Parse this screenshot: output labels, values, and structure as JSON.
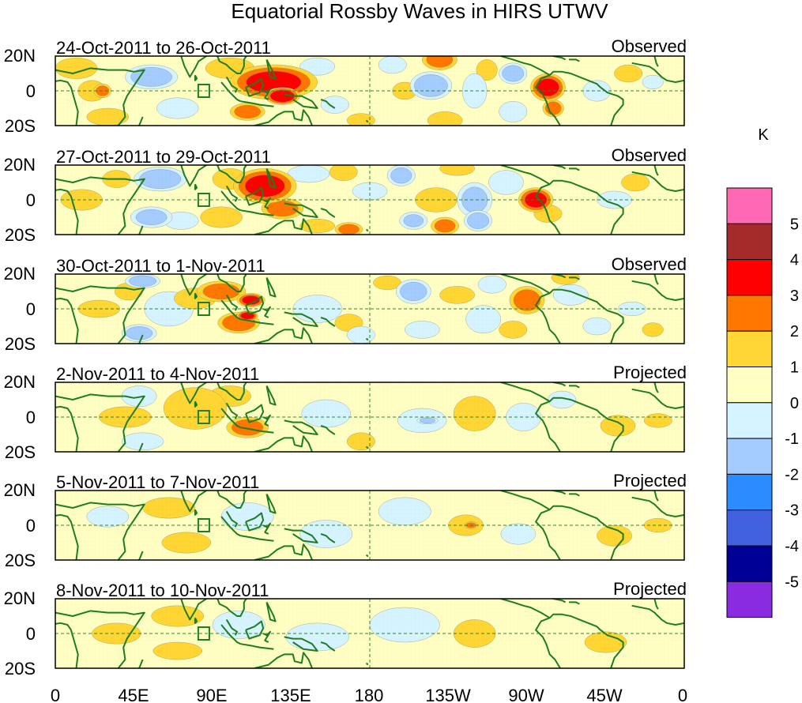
{
  "chart_data": {
    "type": "heatmap",
    "title": "Equatorial Rossby Waves in HIRS UTWV",
    "units_label": "K",
    "lat_labels": [
      "20N",
      "0",
      "20S"
    ],
    "lon_labels": [
      "0",
      "45E",
      "90E",
      "135E",
      "180",
      "135W",
      "90W",
      "45W",
      "0"
    ],
    "lon_range": [
      0,
      360
    ],
    "lat_range": [
      -20,
      20
    ],
    "colorbar": {
      "levels": [
        -5,
        -4,
        -3,
        -2,
        -1,
        0,
        1,
        2,
        3,
        4,
        5
      ],
      "level_labels": [
        "5",
        "4",
        "3",
        "2",
        "1",
        "0",
        "-1",
        "-2",
        "-3",
        "-4",
        "-5"
      ],
      "colors_top_to_bottom": [
        "#ff69b4",
        "#a52a2a",
        "#ff0000",
        "#ff7700",
        "#ffd633",
        "#ffffc4",
        "#d5f4ff",
        "#a4ccff",
        "#2b8cff",
        "#4161e0",
        "#000096",
        "#8a2be2"
      ]
    },
    "panels": [
      {
        "date_range": "24-Oct-2011 to 26-Oct-2011",
        "status": "Observed",
        "blobs": [
          [
            21,
            0,
            8,
            6,
            1.3
          ],
          [
            27,
            0,
            5,
            4,
            2.2
          ],
          [
            12,
            13,
            12,
            6,
            1.2
          ],
          [
            30,
            -15,
            12,
            5,
            1.2
          ],
          [
            55,
            8,
            15,
            7,
            -2.6
          ],
          [
            70,
            -10,
            12,
            6,
            -1.8
          ],
          [
            100,
            13,
            14,
            6,
            1.5
          ],
          [
            125,
            5,
            25,
            10,
            3.3
          ],
          [
            130,
            -3,
            10,
            5,
            3.8
          ],
          [
            110,
            -12,
            10,
            5,
            2.3
          ],
          [
            150,
            14,
            10,
            5,
            -1.8
          ],
          [
            160,
            -8,
            8,
            5,
            -1.3
          ],
          [
            175,
            -17,
            8,
            4,
            1.6
          ],
          [
            193,
            15,
            8,
            5,
            -1.5
          ],
          [
            200,
            0,
            7,
            5,
            1.2
          ],
          [
            215,
            3,
            12,
            8,
            -2.7
          ],
          [
            220,
            18,
            10,
            6,
            2.3
          ],
          [
            223,
            -17,
            10,
            5,
            1.8
          ],
          [
            240,
            0,
            7,
            10,
            -1.8
          ],
          [
            247,
            12,
            6,
            6,
            1.2
          ],
          [
            262,
            10,
            8,
            6,
            -2.5
          ],
          [
            262,
            -12,
            8,
            6,
            -1.8
          ],
          [
            282,
            2,
            10,
            8,
            3.3
          ],
          [
            285,
            -10,
            6,
            5,
            2.3
          ],
          [
            310,
            0,
            8,
            6,
            -1.2
          ],
          [
            328,
            10,
            8,
            5,
            1.3
          ],
          [
            342,
            5,
            6,
            4,
            -1.3
          ]
        ]
      },
      {
        "date_range": "27-Oct-2011 to 29-Oct-2011",
        "status": "Observed",
        "blobs": [
          [
            15,
            0,
            12,
            6,
            1.2
          ],
          [
            35,
            12,
            8,
            5,
            1.3
          ],
          [
            60,
            12,
            15,
            7,
            -2.7
          ],
          [
            55,
            -10,
            12,
            6,
            -2.2
          ],
          [
            72,
            -12,
            10,
            5,
            -1.5
          ],
          [
            95,
            -10,
            12,
            6,
            1.5
          ],
          [
            100,
            12,
            10,
            6,
            1.4
          ],
          [
            120,
            8,
            18,
            10,
            3.3
          ],
          [
            130,
            -5,
            12,
            6,
            2.3
          ],
          [
            145,
            15,
            12,
            5,
            -1.8
          ],
          [
            150,
            -15,
            10,
            4,
            1.7
          ],
          [
            168,
            -17,
            8,
            4,
            2.2
          ],
          [
            165,
            16,
            8,
            5,
            1.6
          ],
          [
            180,
            5,
            10,
            5,
            -1.2
          ],
          [
            198,
            14,
            8,
            6,
            -2.3
          ],
          [
            205,
            -12,
            8,
            5,
            -2.0
          ],
          [
            218,
            0,
            12,
            7,
            1.4
          ],
          [
            223,
            -15,
            8,
            5,
            2.2
          ],
          [
            230,
            18,
            10,
            4,
            1.5
          ],
          [
            240,
            0,
            10,
            10,
            -2.2
          ],
          [
            242,
            -12,
            8,
            6,
            -2.5
          ],
          [
            258,
            10,
            10,
            7,
            -1.5
          ],
          [
            275,
            0,
            10,
            7,
            3.3
          ],
          [
            282,
            -8,
            8,
            5,
            1.6
          ],
          [
            320,
            0,
            10,
            5,
            -1.4
          ],
          [
            332,
            10,
            8,
            5,
            1.2
          ]
        ]
      },
      {
        "date_range": "30-Oct-2011 to 1-Nov-2011",
        "status": "Observed",
        "blobs": [
          [
            25,
            0,
            12,
            5,
            1.2
          ],
          [
            42,
            10,
            8,
            5,
            1.6
          ],
          [
            50,
            16,
            10,
            4,
            -2.6
          ],
          [
            48,
            -14,
            10,
            5,
            -2.4
          ],
          [
            65,
            0,
            14,
            10,
            -1.3
          ],
          [
            80,
            6,
            12,
            6,
            1.5
          ],
          [
            95,
            10,
            14,
            6,
            2.3
          ],
          [
            112,
            5,
            8,
            4,
            3.3
          ],
          [
            105,
            -8,
            12,
            6,
            2.6
          ],
          [
            110,
            -4,
            6,
            3,
            3.5
          ],
          [
            150,
            0,
            14,
            8,
            -1.4
          ],
          [
            168,
            -8,
            8,
            5,
            1.2
          ],
          [
            175,
            -15,
            8,
            5,
            -1.5
          ],
          [
            190,
            15,
            8,
            4,
            1.2
          ],
          [
            205,
            10,
            10,
            7,
            -2.4
          ],
          [
            210,
            -12,
            10,
            5,
            -1.8
          ],
          [
            230,
            8,
            10,
            5,
            1.2
          ],
          [
            245,
            -6,
            10,
            8,
            -1.5
          ],
          [
            250,
            14,
            8,
            5,
            -1.4
          ],
          [
            270,
            5,
            10,
            8,
            2.4
          ],
          [
            262,
            -12,
            8,
            5,
            1.5
          ],
          [
            295,
            8,
            10,
            6,
            -1.5
          ],
          [
            292,
            18,
            8,
            4,
            1.8
          ],
          [
            310,
            -10,
            8,
            5,
            -1.2
          ],
          [
            330,
            0,
            8,
            4,
            -1.2
          ],
          [
            342,
            -12,
            6,
            4,
            1.2
          ]
        ]
      },
      {
        "date_range": "2-Nov-2011 to 4-Nov-2011",
        "status": "Projected",
        "blobs": [
          [
            40,
            0,
            15,
            6,
            1.2
          ],
          [
            48,
            12,
            10,
            6,
            -1.4
          ],
          [
            50,
            -14,
            12,
            5,
            -1.8
          ],
          [
            80,
            5,
            18,
            12,
            1.5
          ],
          [
            100,
            12,
            12,
            6,
            1.4
          ],
          [
            110,
            -6,
            12,
            6,
            2.3
          ],
          [
            155,
            2,
            14,
            8,
            -1.3
          ],
          [
            175,
            -14,
            8,
            5,
            1.2
          ],
          [
            210,
            -2,
            14,
            7,
            -1.2
          ],
          [
            213,
            -2,
            6,
            2,
            -2.3
          ],
          [
            240,
            2,
            12,
            10,
            1.3
          ],
          [
            268,
            0,
            10,
            8,
            -1.3
          ],
          [
            290,
            10,
            8,
            5,
            -1.2
          ],
          [
            322,
            -5,
            10,
            6,
            1.2
          ],
          [
            345,
            -2,
            8,
            4,
            1.2
          ]
        ]
      },
      {
        "date_range": "5-Nov-2011 to 7-Nov-2011",
        "status": "Projected",
        "blobs": [
          [
            30,
            5,
            12,
            6,
            -1.2
          ],
          [
            65,
            10,
            15,
            6,
            1.3
          ],
          [
            75,
            -10,
            14,
            6,
            1.4
          ],
          [
            110,
            5,
            15,
            8,
            -1.2
          ],
          [
            155,
            -5,
            15,
            8,
            -1.2
          ],
          [
            200,
            8,
            15,
            8,
            -1.1
          ],
          [
            235,
            0,
            10,
            6,
            1.2
          ],
          [
            238,
            0,
            4,
            2,
            2.1
          ],
          [
            265,
            -5,
            10,
            6,
            -1.2
          ],
          [
            320,
            -6,
            10,
            6,
            1.2
          ],
          [
            345,
            0,
            8,
            4,
            1.3
          ]
        ]
      },
      {
        "date_range": "8-Nov-2011 to 10-Nov-2011",
        "status": "Projected",
        "blobs": [
          [
            35,
            0,
            14,
            6,
            1.1
          ],
          [
            70,
            10,
            15,
            6,
            1.3
          ],
          [
            70,
            -10,
            14,
            5,
            1.2
          ],
          [
            105,
            5,
            15,
            8,
            -1.1
          ],
          [
            150,
            -2,
            18,
            8,
            -1.1
          ],
          [
            200,
            5,
            20,
            10,
            -1.1
          ],
          [
            240,
            0,
            12,
            8,
            1.1
          ],
          [
            315,
            -5,
            12,
            6,
            1.2
          ]
        ]
      }
    ]
  }
}
